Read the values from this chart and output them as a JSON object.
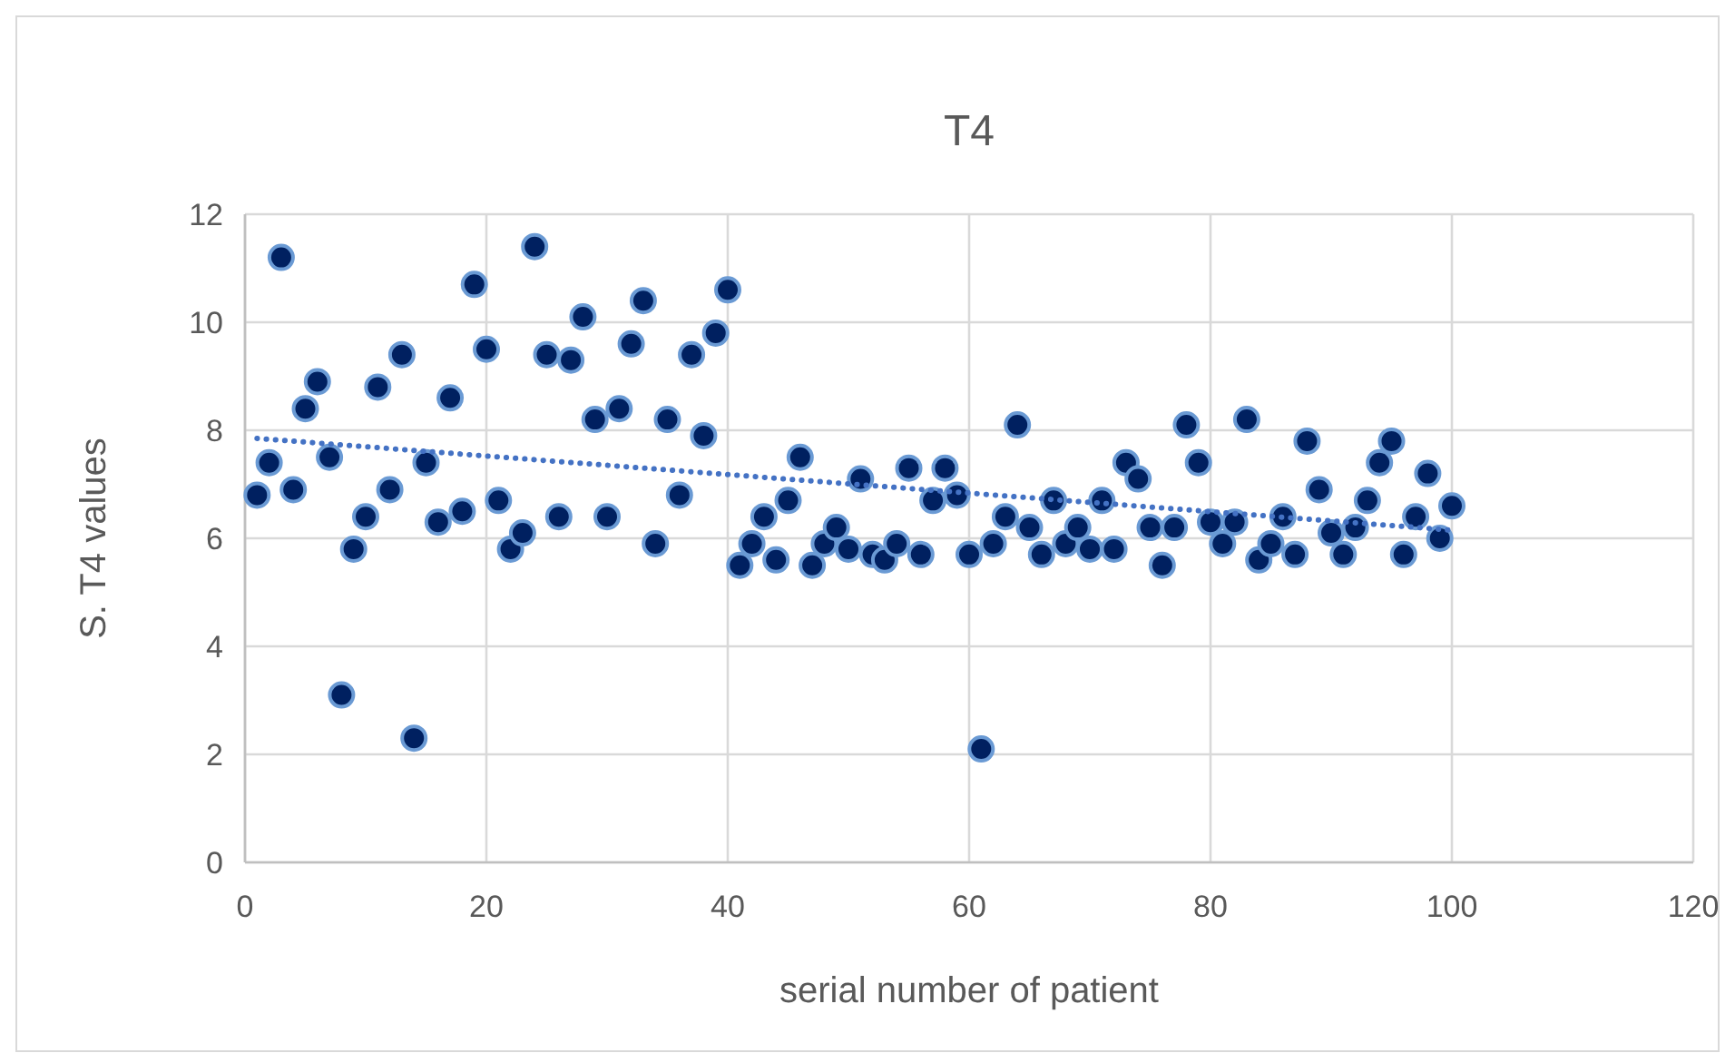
{
  "chart_data": {
    "type": "scatter",
    "title": "T4",
    "xlabel": "serial number of patient",
    "ylabel": "S. T4 values",
    "xlim": [
      0,
      120
    ],
    "xticks": [
      0,
      20,
      40,
      60,
      80,
      100,
      120
    ],
    "ylim": [
      0,
      12
    ],
    "yticks": [
      0,
      2,
      4,
      6,
      8,
      10,
      12
    ],
    "grid": true,
    "marker": "circle",
    "series": [
      {
        "color": "#002060",
        "x": [
          1,
          2,
          3,
          4,
          5,
          6,
          7,
          8,
          9,
          10,
          11,
          12,
          13,
          14,
          15,
          16,
          17,
          18,
          19,
          20,
          21,
          22,
          23,
          24,
          25,
          26,
          27,
          28,
          29,
          30,
          31,
          32,
          33,
          34,
          35,
          36,
          37,
          38,
          39,
          40,
          41,
          42,
          43,
          44,
          45,
          46,
          47,
          48,
          49,
          50,
          51,
          52,
          53,
          54,
          55,
          56,
          57,
          58,
          59,
          60,
          61,
          62,
          63,
          64,
          65,
          66,
          67,
          68,
          69,
          70,
          71,
          72,
          73,
          74,
          75,
          76,
          77,
          78,
          79,
          80,
          81,
          82,
          83,
          84,
          85,
          86,
          87,
          88,
          89,
          90,
          91,
          92,
          93,
          94,
          95,
          96,
          97,
          98,
          99,
          100
        ],
        "values": [
          6.8,
          7.4,
          11.2,
          6.9,
          8.4,
          8.9,
          7.5,
          3.1,
          5.8,
          6.4,
          8.8,
          6.9,
          9.4,
          2.3,
          7.4,
          6.3,
          8.6,
          6.5,
          10.7,
          9.5,
          6.7,
          5.8,
          6.1,
          11.4,
          9.4,
          6.4,
          9.3,
          10.1,
          8.2,
          6.4,
          8.4,
          9.6,
          10.4,
          5.9,
          8.2,
          6.8,
          9.4,
          7.9,
          9.8,
          10.6,
          5.5,
          5.9,
          6.4,
          5.6,
          6.7,
          7.5,
          5.5,
          5.9,
          6.2,
          5.8,
          7.1,
          5.7,
          5.6,
          5.9,
          7.3,
          5.7,
          6.7,
          7.3,
          6.8,
          5.7,
          2.1,
          5.9,
          6.4,
          8.1,
          6.2,
          5.7,
          6.7,
          5.9,
          6.2,
          5.8,
          6.7,
          5.8,
          7.4,
          7.1,
          6.2,
          5.5,
          6.2,
          8.1,
          7.4,
          6.3,
          5.9,
          6.3,
          8.2,
          5.6,
          5.9,
          6.4,
          5.7,
          7.8,
          6.9,
          6.1,
          5.7,
          6.2,
          6.7,
          7.4,
          7.8,
          5.7,
          6.4,
          7.2,
          6.0,
          6.6
        ]
      },
      {
        "type": "line",
        "color": "#4472c4",
        "line_style": "dotted",
        "marker": "none",
        "x": [
          1,
          100
        ],
        "values": [
          7.85,
          6.15
        ]
      }
    ]
  }
}
